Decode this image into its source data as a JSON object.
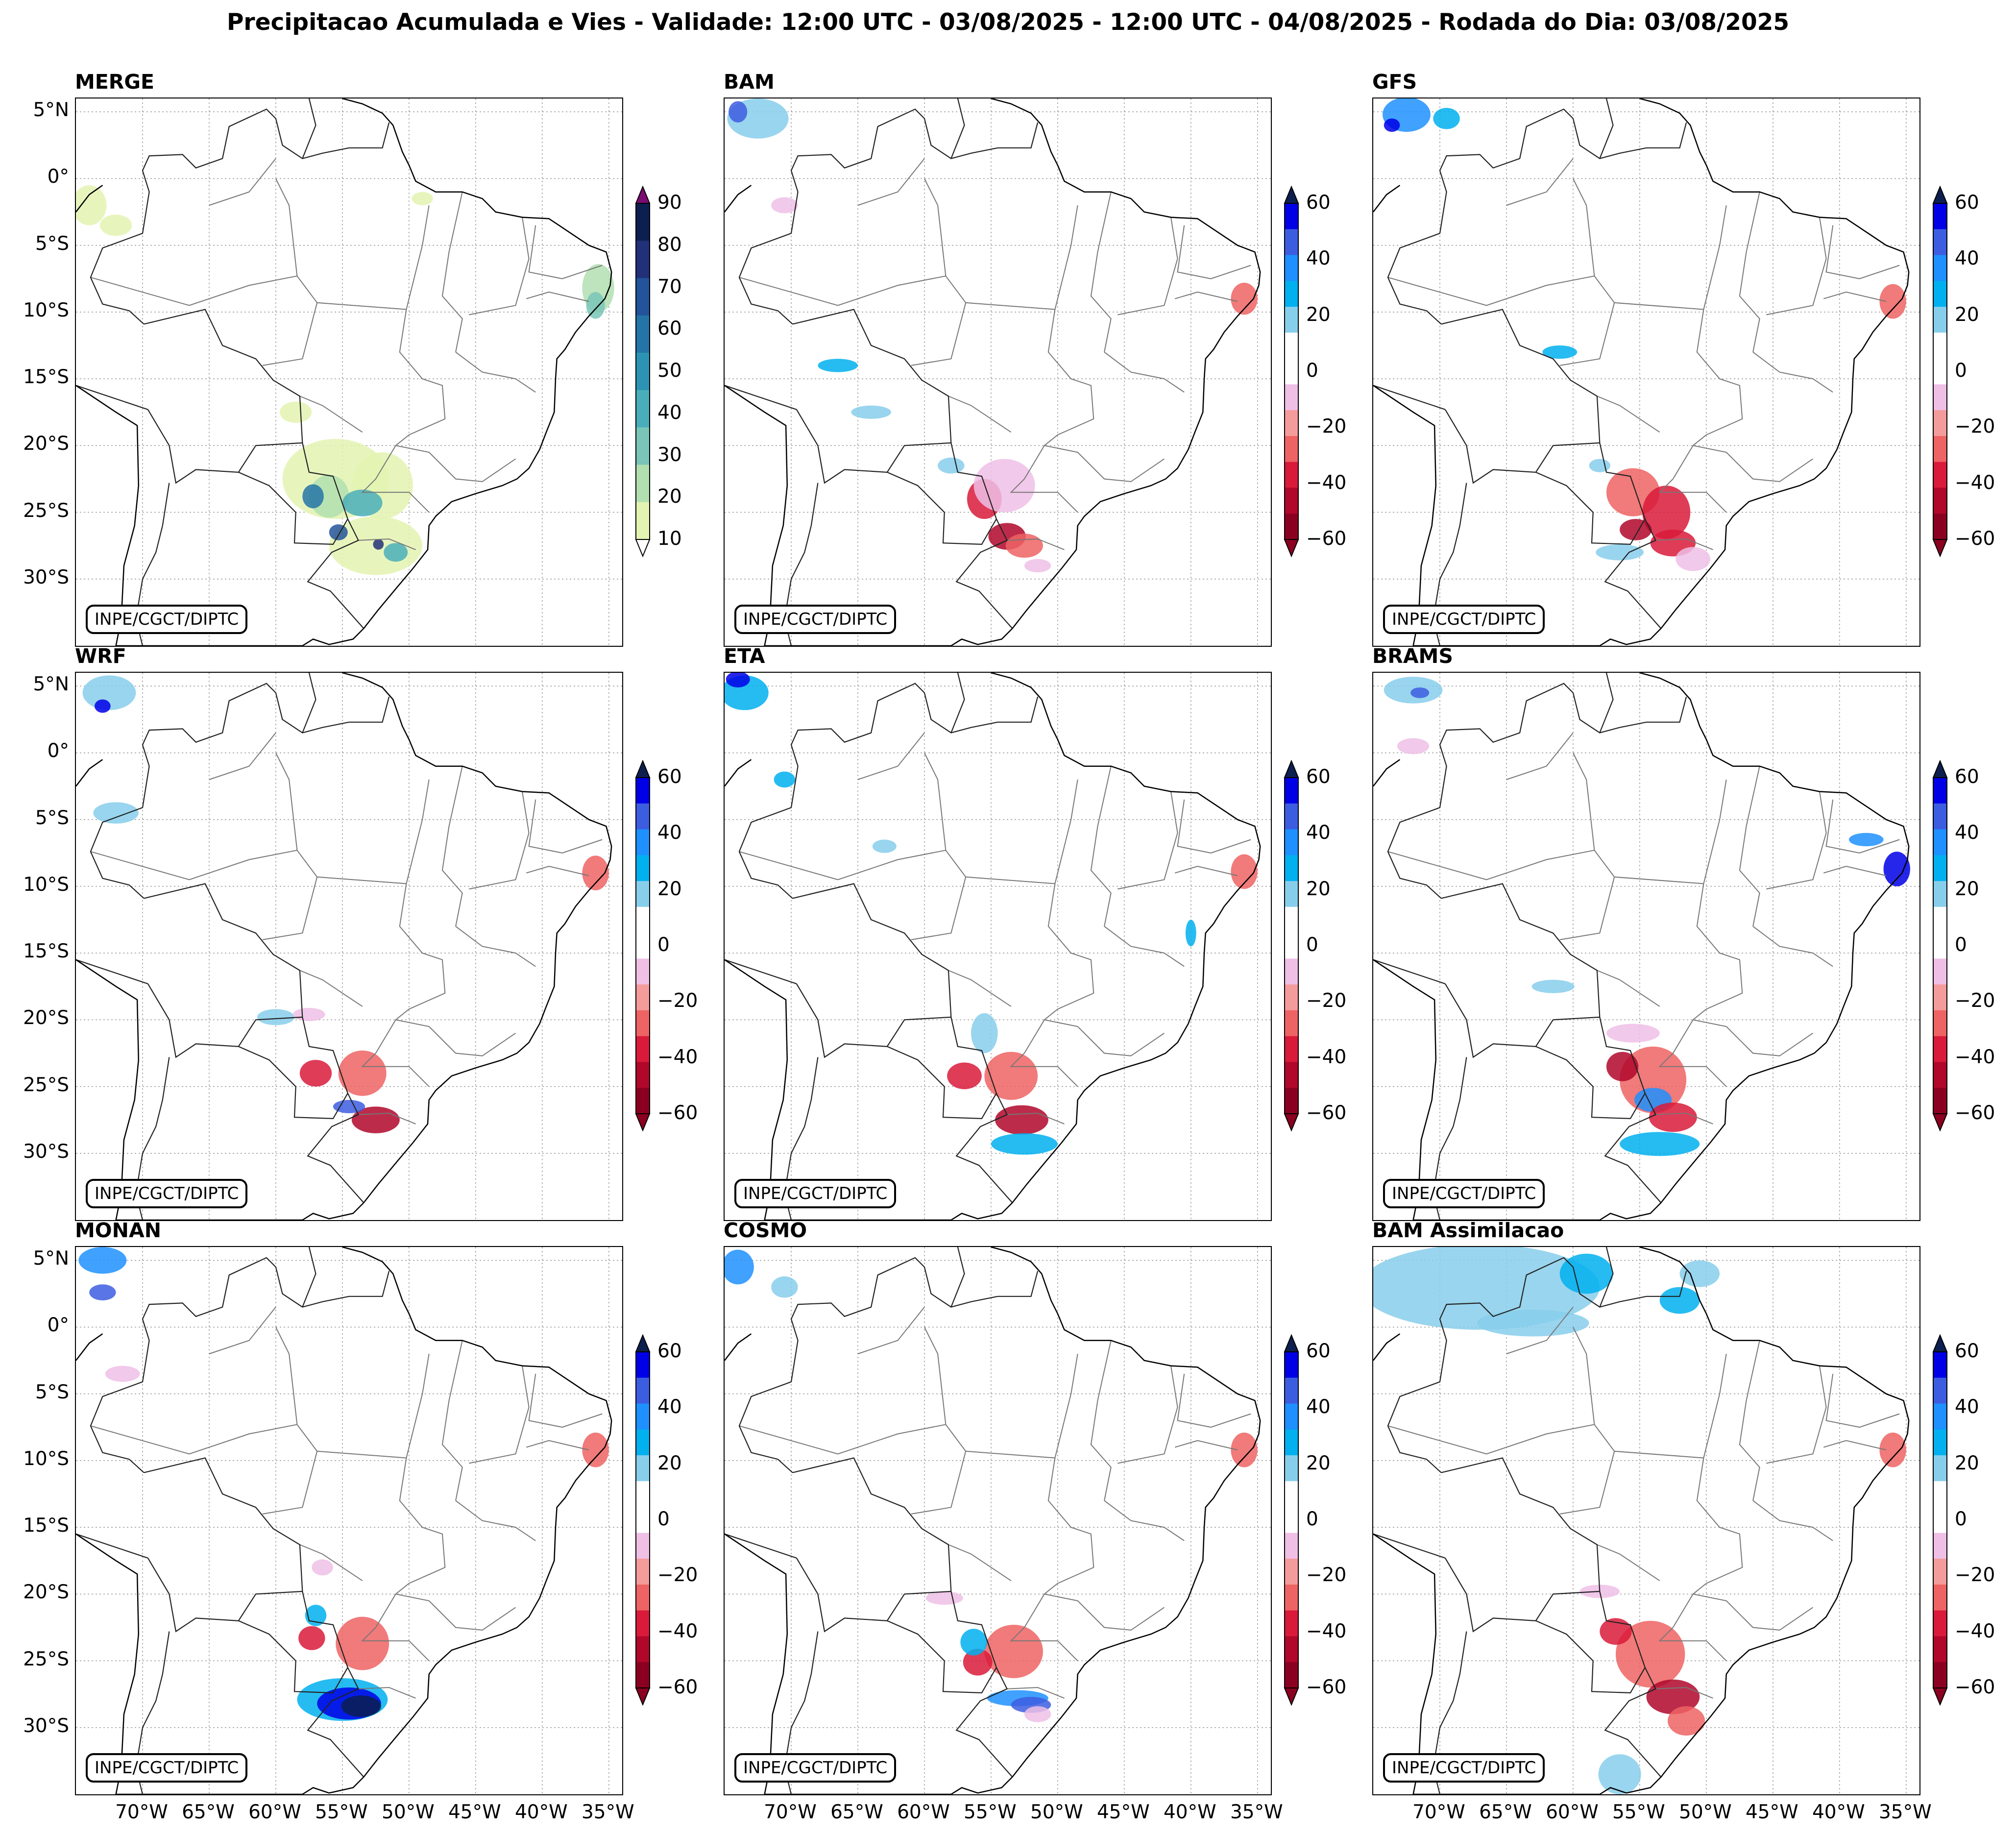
{
  "title": "Precipitacao Acumulada e Vies - Validade: 12:00 UTC - 03/08/2025 - 12:00 UTC - 04/08/2025 - Rodada do Dia: 03/08/2025",
  "credit": "INPE/CGCT/DIPTC",
  "lat_labels": [
    "5°N",
    "0°",
    "5°S",
    "10°S",
    "15°S",
    "20°S",
    "25°S",
    "30°S"
  ],
  "lon_labels": [
    "70°W",
    "65°W",
    "60°W",
    "55°W",
    "50°W",
    "45°W",
    "40°W",
    "35°W"
  ],
  "colorbars": {
    "merge": {
      "ticks": [
        "90",
        "80",
        "70",
        "60",
        "50",
        "40",
        "30",
        "20",
        "10"
      ],
      "colors": [
        "#0c1f4f",
        "#22307a",
        "#23539a",
        "#2474a7",
        "#2c93b4",
        "#4aaeba",
        "#79c5b7",
        "#b2dfb0",
        "#e3f3b2"
      ]
    },
    "bias": {
      "ticks": [
        "60",
        "40",
        "20",
        "0",
        "−20",
        "−40",
        "−60"
      ],
      "colors": [
        "#0000e6",
        "#3d5de0",
        "#1e90ff",
        "#00b0ef",
        "#87ceeb",
        "#ffffff",
        "#ffffff",
        "#efbfe6",
        "#f49b9b",
        "#ee6363",
        "#d91a3a",
        "#b0072a",
        "#8b0020"
      ],
      "top_arrow": "#0c1f4f",
      "bottom_arrow": "#8b0020"
    }
  },
  "panels": [
    {
      "name": "MERGE"
    },
    {
      "name": "BAM"
    },
    {
      "name": "GFS"
    },
    {
      "name": "WRF"
    },
    {
      "name": "ETA"
    },
    {
      "name": "BRAMS"
    },
    {
      "name": "MONAN"
    },
    {
      "name": "COSMO"
    },
    {
      "name": "BAM Assimilacao"
    }
  ]
}
